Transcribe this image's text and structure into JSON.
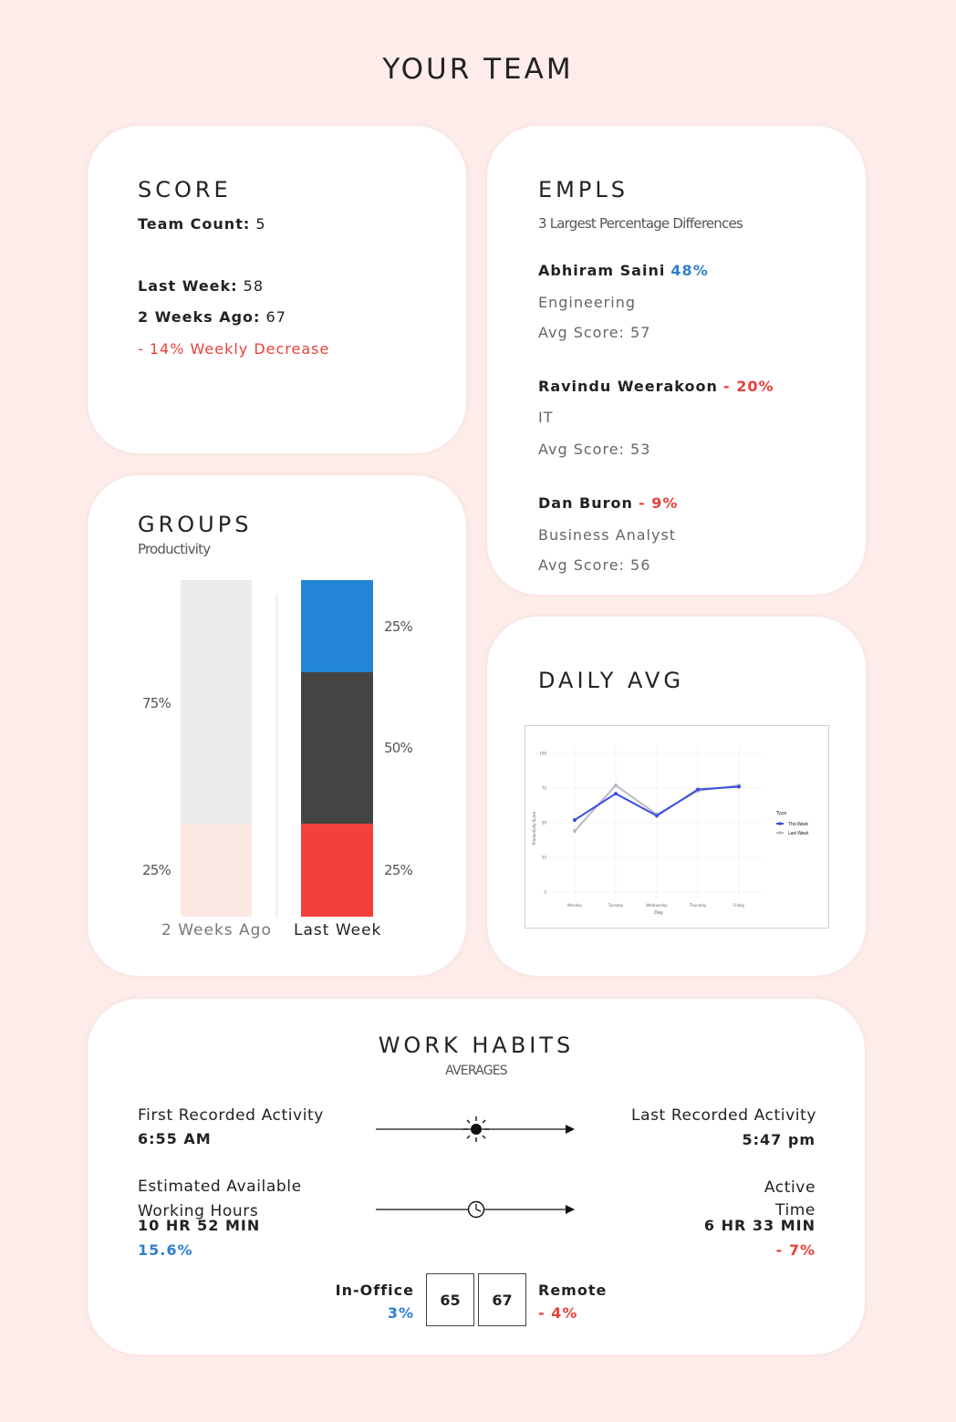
{
  "page": {
    "title": "YOUR TEAM"
  },
  "score": {
    "title": "SCORE",
    "team_count_label": "Team Count:",
    "team_count_value": "5",
    "last_week_label": "Last Week:",
    "last_week_value": "58",
    "two_weeks_label": "2 Weeks Ago:",
    "two_weeks_value": "67",
    "change_text": "- 14% Weekly Decrease",
    "change_color": "#e8413a"
  },
  "empls": {
    "title": "EMPLS",
    "subtitle": "3 Largest Percentage Differences",
    "employees": [
      {
        "name": "Abhiram Saini",
        "change": "48%",
        "department": "Engineering",
        "avg_label": "Avg Score: 57"
      },
      {
        "name": "Ravindu Weerakoon",
        "change": "- 20%",
        "department": "IT",
        "avg_label": "Avg Score: 53"
      },
      {
        "name": "Dan Buron",
        "change": "- 9%",
        "department": "Business Analyst",
        "avg_label": "Avg Score: 56"
      }
    ]
  },
  "groups": {
    "title": "GROUPS",
    "subtitle": "Productivity",
    "two_weeks": {
      "label": "2 Weeks Ago",
      "segments": [
        {
          "pct": 75,
          "label": "75%",
          "color": "#ebebeb"
        },
        {
          "pct": 25,
          "label": "25%",
          "color": "#fde8e4"
        }
      ]
    },
    "last_week": {
      "label": "Last Week",
      "segments": [
        {
          "pct": 25,
          "label": "25%",
          "color": "#2385d6"
        },
        {
          "pct": 50,
          "label": "50%",
          "color": "#444444"
        },
        {
          "pct": 25,
          "label": "25%",
          "color": "#f2403a"
        }
      ]
    }
  },
  "daily_avg": {
    "title": "DAILY AVG",
    "chart_data": {
      "type": "line",
      "x": [
        "Monday",
        "Tuesday",
        "Wednesday",
        "Thursday",
        "Friday"
      ],
      "xlabel": "Day",
      "ylabel": "Productivity Score",
      "yticks": [
        "0",
        "25",
        "50",
        "75",
        "100"
      ],
      "ylim": [
        0,
        100
      ],
      "legend_title": "Type",
      "legend_position": "right",
      "series": [
        {
          "name": "This Week",
          "color": "#3b4fe0",
          "values": [
            52,
            71,
            55,
            74,
            76
          ]
        },
        {
          "name": "Last Week",
          "color": "#b9b9c4",
          "values": [
            44,
            77,
            56,
            73,
            77
          ]
        }
      ]
    }
  },
  "work_habits": {
    "title": "WORK HABITS",
    "subtitle": "AVERAGES",
    "first_activity_label": "First Recorded Activity",
    "first_activity_value": "6:55 AM",
    "last_activity_label": "Last Recorded Activity",
    "last_activity_value": "5:47 pm",
    "est_hours_label_1": "Estimated Available",
    "est_hours_label_2": "Working Hours",
    "est_hours_value": "10 HR 52 MIN",
    "est_hours_change": "15.6%",
    "active_label_1": "Active",
    "active_label_2": "Time",
    "active_value": "6 HR 33 MIN",
    "active_change": "- 7%",
    "in_office_label": "In-Office",
    "in_office_change": "3%",
    "in_office_value": "65",
    "remote_value": "67",
    "remote_label": "Remote",
    "remote_change": "- 4%",
    "icons": [
      "sun-icon",
      "clock-icon",
      "arrow-right-icon"
    ]
  }
}
